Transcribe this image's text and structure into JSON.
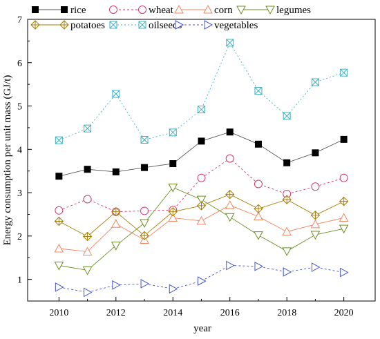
{
  "chart_data": {
    "type": "line",
    "xlabel": "year",
    "ylabel": "Energy consumption per unit mass (GJ/t)",
    "x": [
      2010,
      2011,
      2012,
      2013,
      2014,
      2015,
      2016,
      2017,
      2018,
      2019,
      2020
    ],
    "xlim": [
      2008.9,
      2021.1
    ],
    "ylim": [
      0.5,
      7.0
    ],
    "x_ticks": [
      "2010",
      "2012",
      "2014",
      "2016",
      "2018",
      "2020"
    ],
    "y_ticks": [
      "1",
      "2",
      "3",
      "4",
      "5",
      "6",
      "7"
    ],
    "grid": false,
    "legend_position": "top",
    "series": [
      {
        "name": "rice",
        "marker": "square-filled",
        "line": "solid",
        "color": "#000000",
        "line_color": "#555555",
        "values": [
          3.38,
          3.54,
          3.48,
          3.58,
          3.67,
          4.19,
          4.4,
          4.12,
          3.69,
          3.92,
          4.23
        ]
      },
      {
        "name": "wheat",
        "marker": "circle",
        "line": "dashed",
        "color": "#d6336c",
        "values": [
          2.59,
          2.85,
          2.56,
          2.58,
          2.6,
          3.34,
          3.79,
          3.2,
          2.97,
          3.14,
          3.34
        ]
      },
      {
        "name": "corn",
        "marker": "triangle-up",
        "line": "solid",
        "color": "#f4845f",
        "values": [
          1.71,
          1.64,
          2.28,
          1.91,
          2.42,
          2.35,
          2.71,
          2.45,
          2.1,
          2.27,
          2.42
        ]
      },
      {
        "name": "legumes",
        "marker": "triangle-down",
        "line": "solid",
        "color": "#6b8e23",
        "values": [
          1.32,
          1.21,
          1.78,
          2.3,
          3.12,
          2.84,
          2.44,
          2.02,
          1.65,
          2.03,
          2.17
        ]
      },
      {
        "name": "potatoes",
        "marker": "diamond-plus",
        "line": "solid",
        "color": "#a67c00",
        "values": [
          2.34,
          1.99,
          2.56,
          2.01,
          2.56,
          2.7,
          2.96,
          2.63,
          2.84,
          2.48,
          2.8
        ]
      },
      {
        "name": "oilseeds",
        "marker": "x-square",
        "line": "dotted",
        "color": "#3fb0c0",
        "values": [
          4.21,
          4.48,
          5.28,
          4.22,
          4.39,
          4.92,
          6.46,
          5.35,
          4.77,
          5.55,
          5.77
        ]
      },
      {
        "name": "vegetables",
        "marker": "triangle-right",
        "line": "dashed",
        "color": "#4455cc",
        "values": [
          0.82,
          0.7,
          0.87,
          0.9,
          0.78,
          0.96,
          1.32,
          1.3,
          1.17,
          1.28,
          1.16
        ]
      }
    ]
  }
}
